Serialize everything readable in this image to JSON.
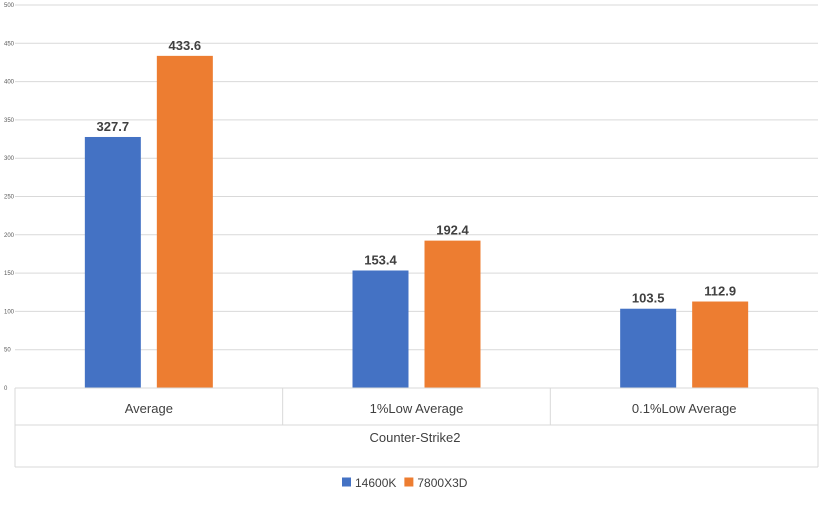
{
  "chart_data": {
    "type": "bar",
    "group_label": "Counter-Strike2",
    "categories": [
      "Average",
      "1%Low Average",
      "0.1%Low Average"
    ],
    "series": [
      {
        "name": "14600K",
        "color": "#4472C4",
        "values": [
          327.7,
          153.4,
          103.5
        ]
      },
      {
        "name": "7800X3D",
        "color": "#ED7D31",
        "values": [
          433.6,
          192.4,
          112.9
        ]
      }
    ],
    "ylim": [
      0,
      500
    ],
    "yticks": [
      "0",
      "50",
      "100",
      "150",
      "200",
      "250",
      "300",
      "350",
      "400",
      "450",
      "500"
    ],
    "grid": true,
    "legend": "bottom"
  }
}
